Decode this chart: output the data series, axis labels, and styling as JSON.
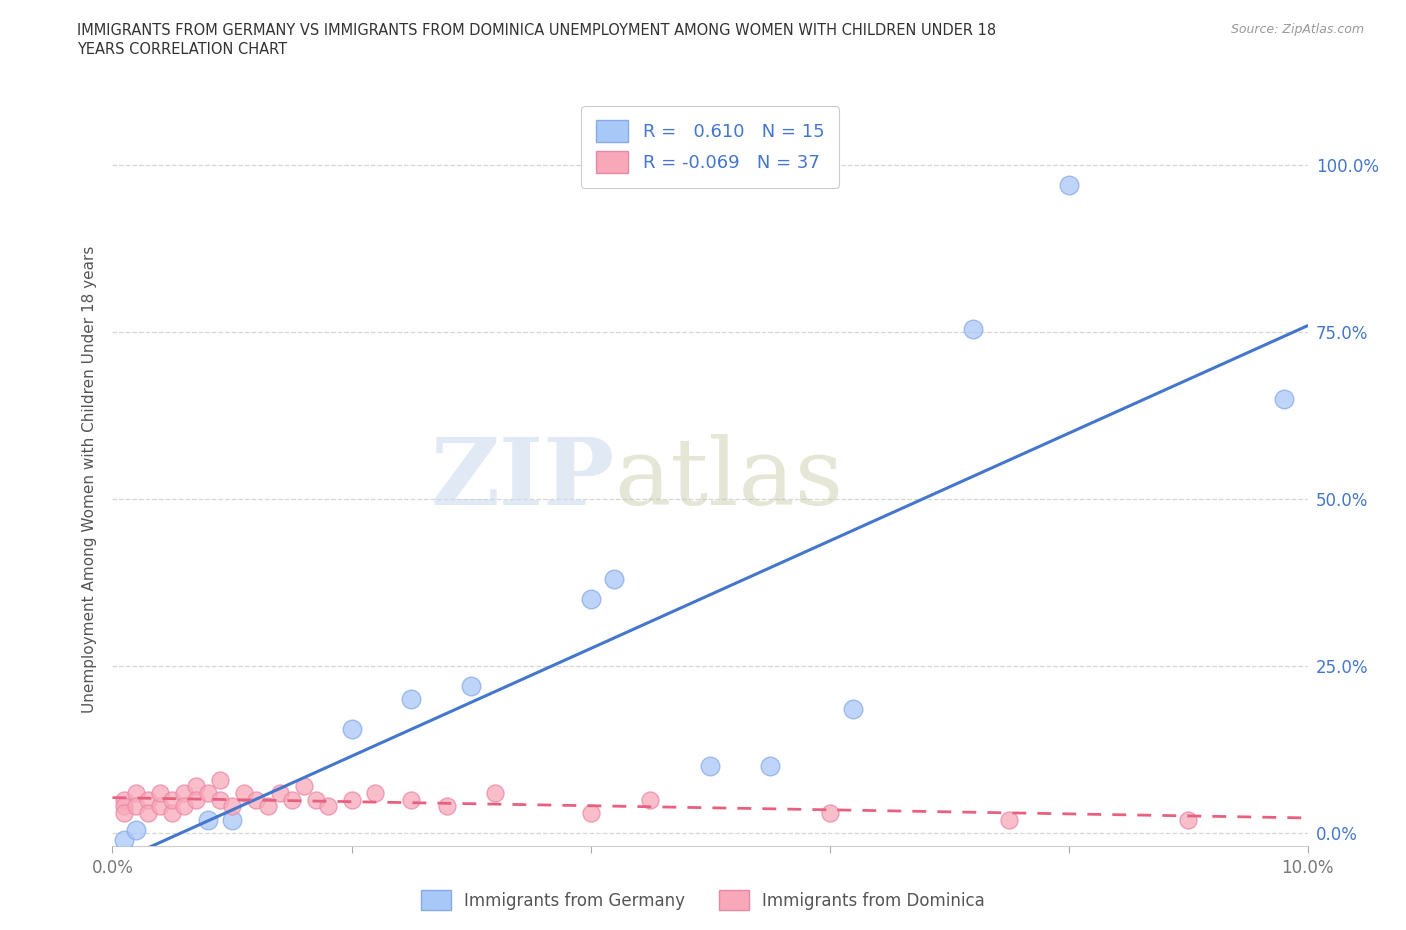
{
  "title_line1": "IMMIGRANTS FROM GERMANY VS IMMIGRANTS FROM DOMINICA UNEMPLOYMENT AMONG WOMEN WITH CHILDREN UNDER 18",
  "title_line2": "YEARS CORRELATION CHART",
  "source": "Source: ZipAtlas.com",
  "ylabel": "Unemployment Among Women with Children Under 18 years",
  "xlabel_germany": "Immigrants from Germany",
  "xlabel_dominica": "Immigrants from Dominica",
  "xlim": [
    0.0,
    0.1
  ],
  "ylim": [
    -0.02,
    1.08
  ],
  "yticks": [
    0.0,
    0.25,
    0.5,
    0.75,
    1.0
  ],
  "ytick_labels": [
    "0.0%",
    "25.0%",
    "50.0%",
    "75.0%",
    "100.0%"
  ],
  "xticks": [
    0.0,
    0.02,
    0.04,
    0.06,
    0.08,
    0.1
  ],
  "xtick_labels": [
    "0.0%",
    "",
    "",
    "",
    "",
    "10.0%"
  ],
  "germany_color": "#a8c8f8",
  "germany_edge_color": "#88aae8",
  "dominica_color": "#f8a8b8",
  "dominica_edge_color": "#e888a8",
  "germany_line_color": "#4477cc",
  "dominica_line_color": "#e86080",
  "R_germany": 0.61,
  "N_germany": 15,
  "R_dominica": -0.069,
  "N_dominica": 37,
  "germany_x": [
    0.001,
    0.002,
    0.008,
    0.01,
    0.02,
    0.025,
    0.03,
    0.04,
    0.042,
    0.05,
    0.055,
    0.062,
    0.072,
    0.08,
    0.098
  ],
  "germany_y": [
    -0.01,
    0.005,
    0.02,
    0.02,
    0.155,
    0.2,
    0.22,
    0.35,
    0.38,
    0.1,
    0.1,
    0.185,
    0.755,
    0.97,
    0.65
  ],
  "dominica_x": [
    0.001,
    0.001,
    0.001,
    0.002,
    0.002,
    0.003,
    0.003,
    0.004,
    0.004,
    0.005,
    0.005,
    0.006,
    0.006,
    0.007,
    0.007,
    0.008,
    0.009,
    0.009,
    0.01,
    0.011,
    0.012,
    0.013,
    0.014,
    0.015,
    0.016,
    0.017,
    0.018,
    0.02,
    0.022,
    0.025,
    0.028,
    0.032,
    0.04,
    0.045,
    0.06,
    0.075,
    0.09
  ],
  "dominica_y": [
    0.05,
    0.04,
    0.03,
    0.06,
    0.04,
    0.05,
    0.03,
    0.04,
    0.06,
    0.03,
    0.05,
    0.06,
    0.04,
    0.07,
    0.05,
    0.06,
    0.08,
    0.05,
    0.04,
    0.06,
    0.05,
    0.04,
    0.06,
    0.05,
    0.07,
    0.05,
    0.04,
    0.05,
    0.06,
    0.05,
    0.04,
    0.06,
    0.03,
    0.05,
    0.03,
    0.02,
    0.02
  ],
  "watermark_zip": "ZIP",
  "watermark_atlas": "atlas",
  "background_color": "#ffffff",
  "grid_color": "#cccccc",
  "tick_label_color": "#4477cc",
  "axis_label_color": "#555555"
}
